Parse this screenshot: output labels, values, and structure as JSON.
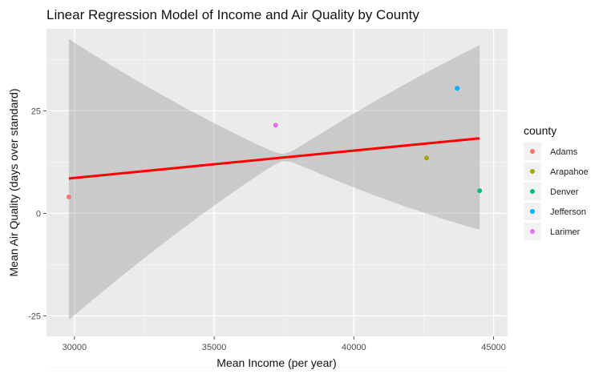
{
  "chart_data": {
    "type": "scatter",
    "title": "Linear Regression Model of Income and Air Quality by County",
    "xlabel": "Mean Income (per year)",
    "ylabel": "Mean Air Quality (days over standard)",
    "xlim": [
      29000,
      45500
    ],
    "ylim": [
      -30,
      45
    ],
    "x_ticks": [
      30000,
      35000,
      40000,
      45000
    ],
    "y_ticks": [
      -25,
      0,
      25
    ],
    "legend_title": "county",
    "legend_position": "right",
    "grid": true,
    "series": [
      {
        "name": "Adams",
        "color": "#F8766D",
        "x": 29800,
        "y": 4
      },
      {
        "name": "Arapahoe",
        "color": "#A3A500",
        "x": 42600,
        "y": 13.5
      },
      {
        "name": "Denver",
        "color": "#00BF7D",
        "x": 44500,
        "y": 5.5
      },
      {
        "name": "Jefferson",
        "color": "#00B0F6",
        "x": 43700,
        "y": 30.5
      },
      {
        "name": "Larimer",
        "color": "#E76BF3",
        "x": 37200,
        "y": 21.5
      }
    ],
    "regression": {
      "color": "#FF0000",
      "x": [
        29800,
        44500
      ],
      "y": [
        8.5,
        18.3
      ],
      "ci_color": "#999999",
      "ci_lower": [
        -26,
        -4
      ],
      "ci_upper": [
        42.5,
        41
      ]
    }
  }
}
